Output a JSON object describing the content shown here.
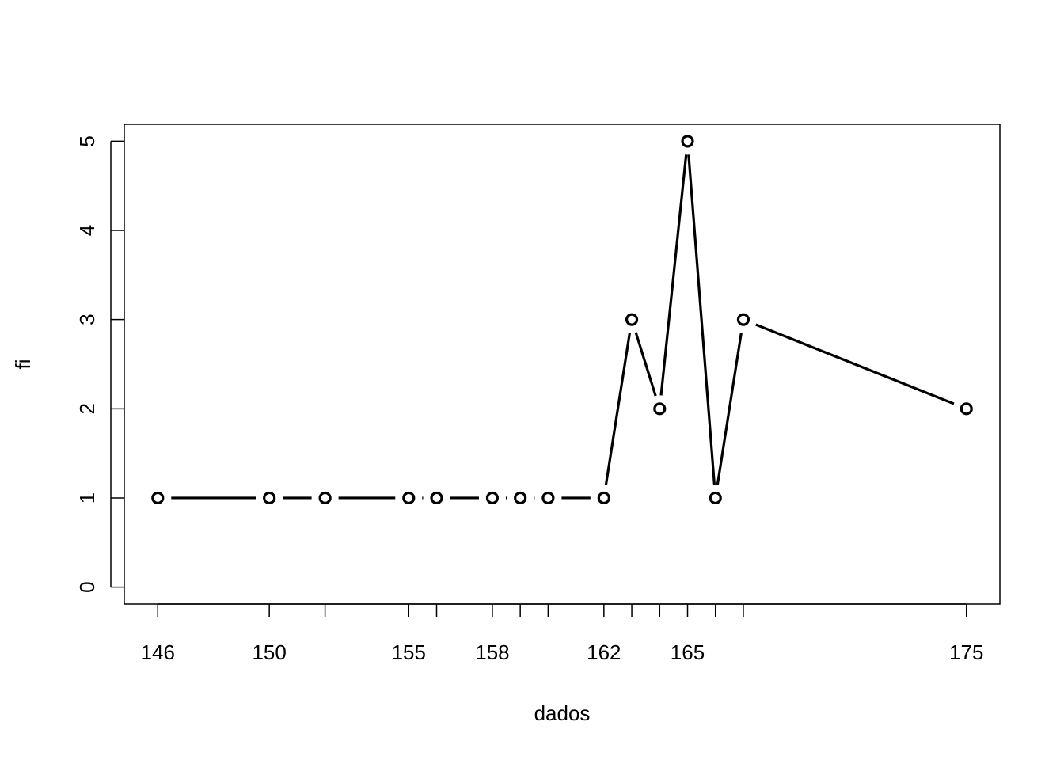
{
  "chart_data": {
    "type": "line",
    "title": "",
    "xlabel": "dados",
    "ylabel": "fi",
    "x": [
      146,
      150,
      152,
      155,
      156,
      158,
      159,
      160,
      162,
      163,
      164,
      165,
      166,
      167,
      175
    ],
    "y": [
      1,
      1,
      1,
      1,
      1,
      1,
      1,
      1,
      1,
      3,
      2,
      5,
      1,
      3,
      2
    ],
    "xlim": [
      144.8,
      176.2
    ],
    "ylim": [
      -0.19,
      5.19
    ],
    "x_ticks": [
      146,
      150,
      152,
      155,
      156,
      158,
      159,
      160,
      162,
      163,
      164,
      165,
      166,
      167,
      175
    ],
    "x_tick_labels": [
      "146",
      "150",
      "",
      "155",
      "",
      "158",
      "",
      "",
      "162",
      "",
      "",
      "165",
      "",
      "",
      "175"
    ],
    "y_ticks": [
      0,
      1,
      2,
      3,
      4,
      5
    ],
    "y_tick_labels": [
      "0",
      "1",
      "2",
      "3",
      "4",
      "5"
    ],
    "line_style": "both-points-and-lines-with-gaps",
    "marker": "open-circle",
    "grid": false,
    "legend": false,
    "color": "#000000"
  }
}
